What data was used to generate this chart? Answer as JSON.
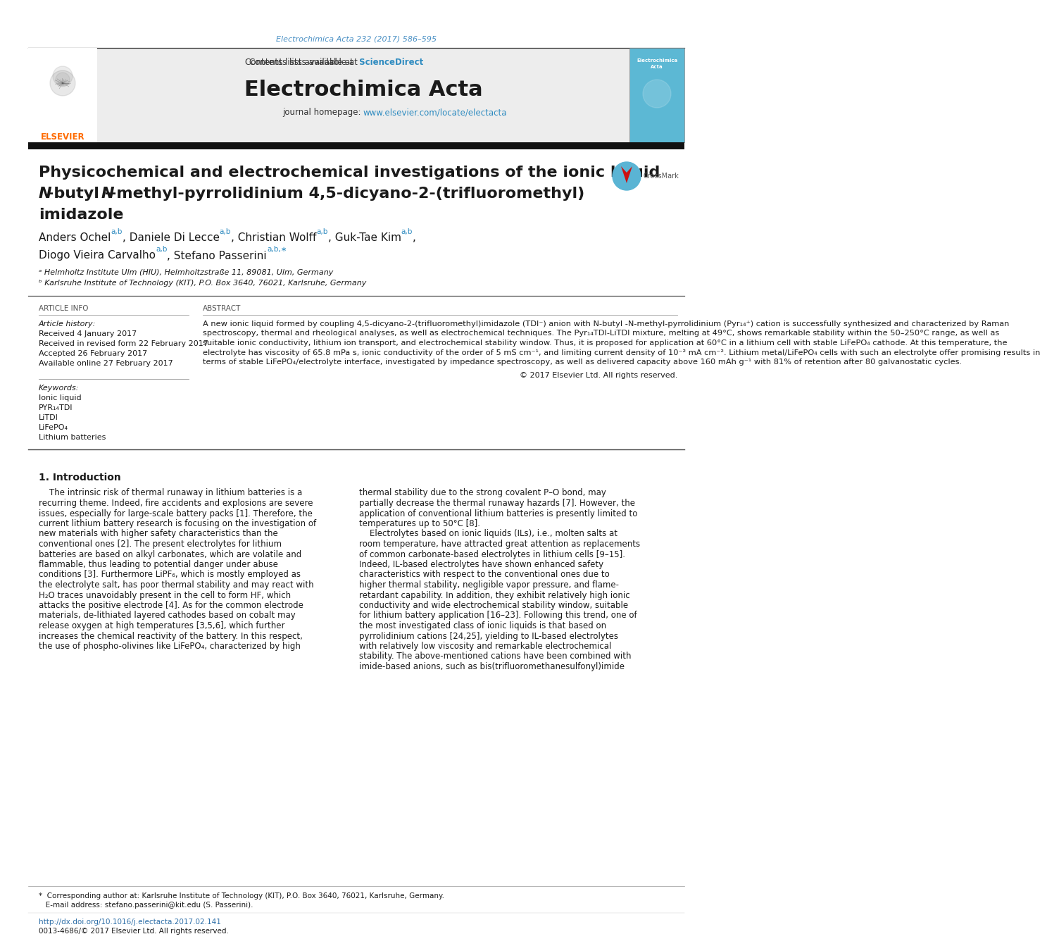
{
  "bg_color": "#ffffff",
  "top_citation": "Electrochimica Acta 232 (2017) 586–595",
  "top_citation_color": "#4a90c4",
  "header_bg": "#ebebeb",
  "header_contents_text": "Contents lists available at ",
  "header_sciencedirect": "ScienceDirect",
  "header_sciencedirect_color": "#2e8bc0",
  "header_journal": "Electrochimica Acta",
  "header_url_prefix": "journal homepage: ",
  "header_url_link": "www.elsevier.com/locate/electacta",
  "header_url_color": "#2e8bc0",
  "elsevier_color": "#FF6B00",
  "cover_bg": "#5ab4d6",
  "paper_title_line1": "Physicochemical and electrochemical investigations of the ionic liquid",
  "paper_title_line2_pre": "-butyl -",
  "paper_title_line2_mid": "-methyl-pyrrolidinium 4,5-dicyano-2-(trifluoromethyl)",
  "paper_title_line3": "imidazole",
  "title_fontsize": 16,
  "author_line1": "Anders Ochel",
  "author_line1_super": "a,b",
  "author_line1_b": ", Daniele Di Lecce",
  "author_line1_b_super": "a,b",
  "author_line1_c": ", Christian Wolff",
  "author_line1_c_super": "a,b",
  "author_line1_d": ", Guk-Tae Kim",
  "author_line1_d_super": "a,b",
  "author_line1_end": ",",
  "author_line2": "Diogo Vieira Carvalho",
  "author_line2_super": "a,b",
  "author_line2_b": ", Stefano Passerini",
  "author_line2_b_super": "a,b,∗",
  "affil_a": "ᵃ Helmholtz Institute Ulm (HIU), Helmholtzstraße 11, 89081, Ulm, Germany",
  "affil_b": "ᵇ Karlsruhe Institute of Technology (KIT), P.O. Box 3640, 76021, Karlsruhe, Germany",
  "article_info_title": "ARTICLE INFO",
  "abstract_title": "ABSTRACT",
  "article_history_label": "Article history:",
  "received": "Received 4 January 2017",
  "received_revised": "Received in revised form 22 February 2017",
  "accepted": "Accepted 26 February 2017",
  "available": "Available online 27 February 2017",
  "keywords_label": "Keywords:",
  "keywords": [
    "Ionic liquid",
    "PYR₁₄TDI",
    "LiTDI",
    "LiFePO₄",
    "Lithium batteries"
  ],
  "abstract_lines": [
    "A new ionic liquid formed by coupling 4,5-dicyano-2-(trifluoromethyl)imidazole (TDI⁻) anion with N-butyl -N-methyl-pyrrolidinium (Pyr₁₄⁺) cation is successfully synthesized and characterized by Raman",
    "spectroscopy, thermal and rheological analyses, as well as electrochemical techniques. The Pyr₁₄TDI-LiTDI mixture, melting at 49°C, shows remarkable stability within the 50–250°C range, as well as",
    "suitable ionic conductivity, lithium ion transport, and electrochemical stability window. Thus, it is proposed for application at 60°C in a lithium cell with stable LiFePO₄ cathode. At this temperature, the",
    "electrolyte has viscosity of 65.8 mPa s, ionic conductivity of the order of 5 mS cm⁻¹, and limiting current density of 10⁻² mA cm⁻². Lithium metal/LiFePO₄ cells with such an electrolyte offer promising results in",
    "terms of stable LiFePO₄/electrolyte interface, investigated by impedance spectroscopy, as well as delivered capacity above 160 mAh g⁻¹ with 81% of retention after 80 galvanostatic cycles."
  ],
  "copyright": "© 2017 Elsevier Ltd. All rights reserved.",
  "section1_title": "1. Introduction",
  "intro_col1_lines": [
    "    The intrinsic risk of thermal runaway in lithium batteries is a",
    "recurring theme. Indeed, fire accidents and explosions are severe",
    "issues, especially for large-scale battery packs [1]. Therefore, the",
    "current lithium battery research is focusing on the investigation of",
    "new materials with higher safety characteristics than the",
    "conventional ones [2]. The present electrolytes for lithium",
    "batteries are based on alkyl carbonates, which are volatile and",
    "flammable, thus leading to potential danger under abuse",
    "conditions [3]. Furthermore LiPF₆, which is mostly employed as",
    "the electrolyte salt, has poor thermal stability and may react with",
    "H₂O traces unavoidably present in the cell to form HF, which",
    "attacks the positive electrode [4]. As for the common electrode",
    "materials, de-lithiated layered cathodes based on cobalt may",
    "release oxygen at high temperatures [3,5,6], which further",
    "increases the chemical reactivity of the battery. In this respect,",
    "the use of phospho-olivines like LiFePO₄, characterized by high"
  ],
  "intro_col2_lines": [
    "thermal stability due to the strong covalent P–O bond, may",
    "partially decrease the thermal runaway hazards [7]. However, the",
    "application of conventional lithium batteries is presently limited to",
    "temperatures up to 50°C [8].",
    "    Electrolytes based on ionic liquids (ILs), i.e., molten salts at",
    "room temperature, have attracted great attention as replacements",
    "of common carbonate-based electrolytes in lithium cells [9–15].",
    "Indeed, IL-based electrolytes have shown enhanced safety",
    "characteristics with respect to the conventional ones due to",
    "higher thermal stability, negligible vapor pressure, and flame-",
    "retardant capability. In addition, they exhibit relatively high ionic",
    "conductivity and wide electrochemical stability window, suitable",
    "for lithium battery application [16–23]. Following this trend, one of",
    "the most investigated class of ionic liquids is that based on",
    "pyrrolidinium cations [24,25], yielding to IL-based electrolytes",
    "with relatively low viscosity and remarkable electrochemical",
    "stability. The above-mentioned cations have been combined with",
    "imide-based anions, such as bis(trifluoromethanesulfonyl)imide"
  ],
  "footer_star_note": "*  Corresponding author at: Karlsruhe Institute of Technology (KIT), P.O. Box 3640, 76021, Karlsruhe, Germany.",
  "footer_email": "   E-mail address: stefano.passerini@kit.edu (S. Passerini).",
  "footer_doi": "http://dx.doi.org/10.1016/j.electacta.2017.02.141",
  "footer_doi_color": "#2e6fa8",
  "footer_issn": "0013-4686/© 2017 Elsevier Ltd. All rights reserved."
}
